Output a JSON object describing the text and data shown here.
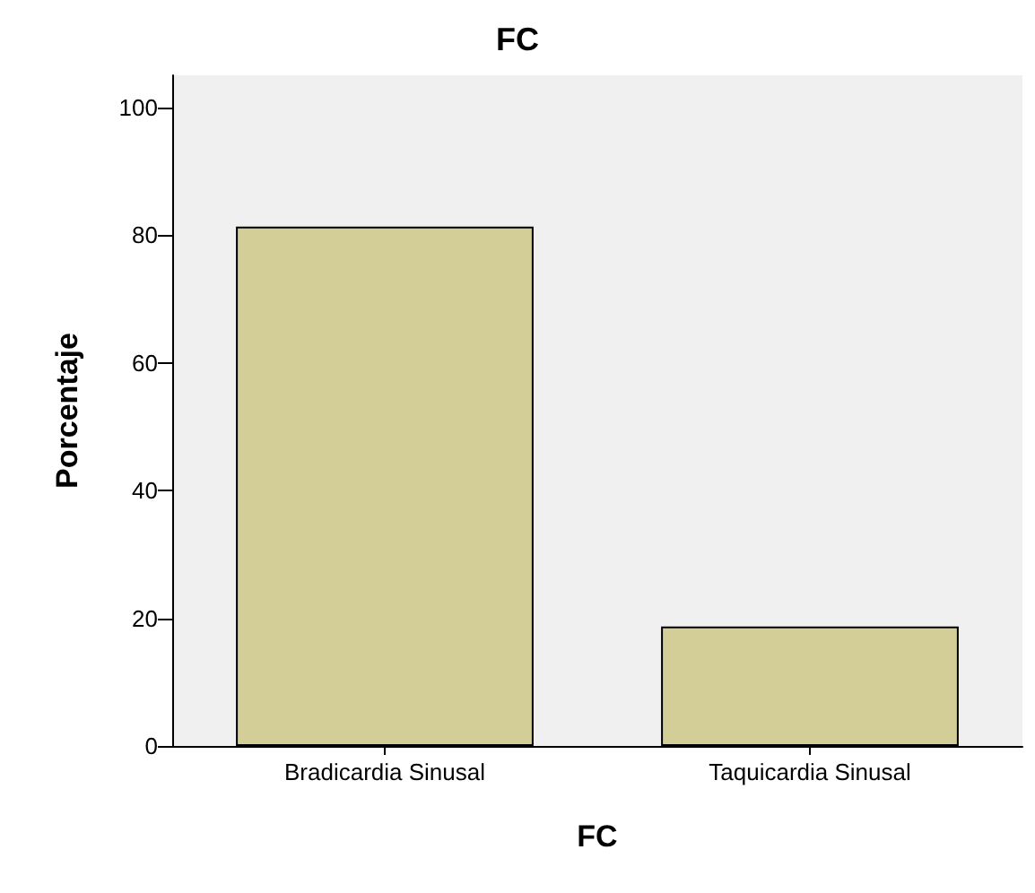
{
  "chart_data": {
    "type": "bar",
    "title": "FC",
    "xlabel": "FC",
    "ylabel": "Porcentaje",
    "categories": [
      "Bradicardia Sinusal",
      "Taquicardia Sinusal"
    ],
    "values": [
      81.3,
      18.7
    ],
    "color": "#d3ce97",
    "ylim": [
      0,
      105
    ],
    "yticks": [
      0,
      20,
      40,
      60,
      80,
      100
    ],
    "grid": false
  }
}
